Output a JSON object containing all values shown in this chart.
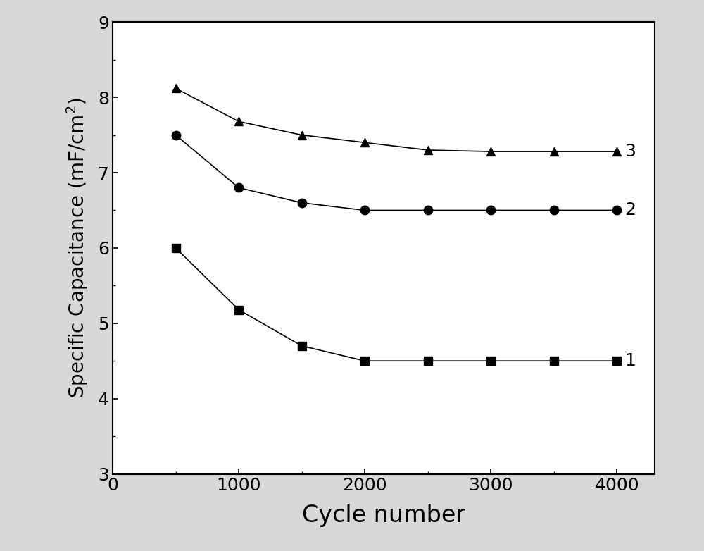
{
  "series": [
    {
      "label": "1",
      "marker": "s",
      "x": [
        500,
        1000,
        1500,
        2000,
        2500,
        3000,
        3500,
        4000
      ],
      "y": [
        6.0,
        5.18,
        4.7,
        4.5,
        4.5,
        4.5,
        4.5,
        4.5
      ]
    },
    {
      "label": "2",
      "marker": "o",
      "x": [
        500,
        1000,
        1500,
        2000,
        2500,
        3000,
        3500,
        4000
      ],
      "y": [
        7.5,
        6.8,
        6.6,
        6.5,
        6.5,
        6.5,
        6.5,
        6.5
      ]
    },
    {
      "label": "3",
      "marker": "^",
      "x": [
        500,
        1000,
        1500,
        2000,
        2500,
        3000,
        3500,
        4000
      ],
      "y": [
        8.12,
        7.68,
        7.5,
        7.4,
        7.3,
        7.28,
        7.28,
        7.28
      ]
    }
  ],
  "xlabel": "Cycle number",
  "ylabel": "Specific Capacitance (mF/cm$^2$)",
  "xlim": [
    0,
    4300
  ],
  "ylim": [
    3,
    9
  ],
  "xticks": [
    0,
    1000,
    2000,
    3000,
    4000
  ],
  "yticks": [
    3,
    4,
    5,
    6,
    7,
    8,
    9
  ],
  "line_color": "#000000",
  "marker_color": "#000000",
  "marker_size": 9,
  "line_width": 1.2,
  "xlabel_fontsize": 24,
  "ylabel_fontsize": 20,
  "tick_fontsize": 18,
  "label_fontsize": 18,
  "figure_facecolor": "#d8d8d8",
  "axes_facecolor": "#ffffff"
}
